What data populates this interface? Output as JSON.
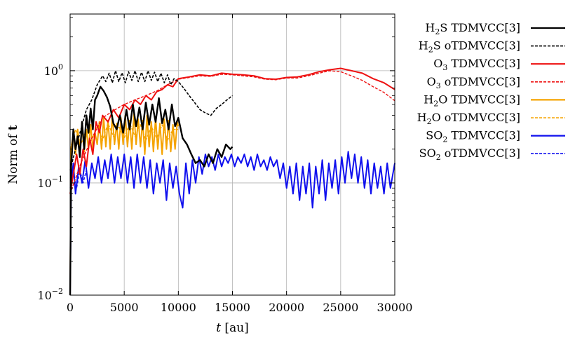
{
  "chart_data": {
    "type": "line",
    "xlabel": {
      "italic": "t",
      "rest": " [au]"
    },
    "ylabel": {
      "text": "Norm of ",
      "bold": "t"
    },
    "xlim": [
      0,
      30000
    ],
    "ylim": [
      0.01,
      3.2
    ],
    "y_scale": "log",
    "grid": true,
    "legend_position": "outside-right",
    "x_ticks": [
      {
        "value": 0,
        "label": "0"
      },
      {
        "value": 5000,
        "label": "5000"
      },
      {
        "value": 10000,
        "label": "10000"
      },
      {
        "value": 15000,
        "label": "15000"
      },
      {
        "value": 20000,
        "label": "20000"
      },
      {
        "value": 25000,
        "label": "25000"
      },
      {
        "value": 30000,
        "label": "30000"
      }
    ],
    "y_ticks": [
      {
        "value": 0.01,
        "base": "10",
        "exp": "−2"
      },
      {
        "value": 0.1,
        "base": "10",
        "exp": "−1"
      },
      {
        "value": 1,
        "base": "10",
        "exp": "0"
      }
    ],
    "series": [
      {
        "name": "H2S TDMVCC[3]",
        "mol": [
          "H",
          "2",
          "S"
        ],
        "method": "TDMVCC[3]",
        "color": "#000000",
        "dash": "",
        "width": 2.4,
        "x": [
          0,
          100,
          300,
          500,
          700,
          900,
          1100,
          1300,
          1500,
          1700,
          1900,
          2100,
          2300,
          2500,
          2800,
          3100,
          3400,
          3700,
          4000,
          4300,
          4600,
          4900,
          5200,
          5500,
          5800,
          6100,
          6400,
          6700,
          7000,
          7300,
          7600,
          7900,
          8200,
          8500,
          8800,
          9100,
          9400,
          9700,
          10000,
          10400,
          10800,
          11200,
          11600,
          12000,
          12400,
          12800,
          13200,
          13600,
          14000,
          14400,
          14800,
          15000
        ],
        "y": [
          0.01,
          0.14,
          0.3,
          0.2,
          0.26,
          0.17,
          0.35,
          0.2,
          0.4,
          0.28,
          0.46,
          0.3,
          0.55,
          0.6,
          0.72,
          0.66,
          0.58,
          0.48,
          0.34,
          0.3,
          0.4,
          0.28,
          0.45,
          0.3,
          0.5,
          0.32,
          0.47,
          0.3,
          0.52,
          0.33,
          0.5,
          0.35,
          0.57,
          0.34,
          0.45,
          0.3,
          0.5,
          0.32,
          0.38,
          0.25,
          0.22,
          0.18,
          0.15,
          0.16,
          0.14,
          0.18,
          0.15,
          0.2,
          0.17,
          0.22,
          0.2,
          0.21
        ]
      },
      {
        "name": "H2S oTDMVCC[3]",
        "mol": [
          "H",
          "2",
          "S"
        ],
        "method": "oTDMVCC[3]",
        "color": "#000000",
        "dash": "4,2",
        "width": 1.6,
        "x": [
          0,
          500,
          1000,
          1500,
          2000,
          2500,
          3000,
          3300,
          3600,
          3900,
          4200,
          4500,
          4800,
          5100,
          5400,
          5700,
          6000,
          6300,
          6600,
          6900,
          7200,
          7500,
          7800,
          8100,
          8400,
          8700,
          9000,
          9300,
          9600,
          10000,
          10500,
          11000,
          11500,
          12000,
          12500,
          13000,
          13500,
          14000,
          14500,
          15000
        ],
        "y": [
          0.13,
          0.2,
          0.3,
          0.45,
          0.55,
          0.75,
          0.9,
          0.8,
          0.95,
          0.78,
          1.0,
          0.8,
          0.96,
          0.78,
          0.98,
          0.82,
          1.0,
          0.8,
          0.97,
          0.8,
          1.0,
          0.82,
          0.97,
          0.8,
          0.95,
          0.78,
          0.92,
          0.75,
          0.85,
          0.8,
          0.7,
          0.6,
          0.52,
          0.45,
          0.42,
          0.4,
          0.46,
          0.5,
          0.55,
          0.6
        ]
      },
      {
        "name": "O3 TDMVCC[3]",
        "mol": [
          "O",
          "3",
          ""
        ],
        "method": "TDMVCC[3]",
        "color": "#ee1111",
        "dash": "",
        "width": 2.0,
        "x": [
          0,
          300,
          600,
          900,
          1200,
          1500,
          1800,
          2100,
          2400,
          2700,
          3000,
          3500,
          4000,
          4500,
          5000,
          5500,
          6000,
          6500,
          7000,
          7500,
          8000,
          8500,
          9000,
          9500,
          10000,
          11000,
          12000,
          13000,
          14000,
          15000,
          16000,
          17000,
          18000,
          19000,
          20000,
          21000,
          22000,
          23000,
          24000,
          25000,
          26000,
          27000,
          28000,
          29000,
          30000
        ],
        "y": [
          0.08,
          0.12,
          0.18,
          0.12,
          0.2,
          0.14,
          0.25,
          0.18,
          0.35,
          0.28,
          0.4,
          0.35,
          0.45,
          0.38,
          0.5,
          0.45,
          0.55,
          0.5,
          0.6,
          0.55,
          0.65,
          0.68,
          0.75,
          0.72,
          0.85,
          0.88,
          0.92,
          0.9,
          0.95,
          0.93,
          0.92,
          0.9,
          0.85,
          0.84,
          0.87,
          0.88,
          0.92,
          0.98,
          1.02,
          1.05,
          1.0,
          0.95,
          0.85,
          0.78,
          0.68
        ]
      },
      {
        "name": "O3 oTDMVCC[3]",
        "mol": [
          "O",
          "3",
          ""
        ],
        "method": "oTDMVCC[3]",
        "color": "#ee1111",
        "dash": "4,2",
        "width": 1.4,
        "x": [
          0,
          1000,
          2000,
          3000,
          4000,
          5000,
          6000,
          7000,
          8000,
          9000,
          10000,
          11000,
          12000,
          13000,
          14000,
          15000,
          16000,
          17000,
          18000,
          19000,
          20000,
          21000,
          22000,
          23000,
          24000,
          25000,
          26000,
          27000,
          28000,
          29000,
          30000
        ],
        "y": [
          0.08,
          0.15,
          0.25,
          0.38,
          0.44,
          0.5,
          0.55,
          0.6,
          0.66,
          0.75,
          0.84,
          0.87,
          0.9,
          0.89,
          0.93,
          0.92,
          0.9,
          0.88,
          0.84,
          0.83,
          0.86,
          0.86,
          0.9,
          0.95,
          1.0,
          0.98,
          0.9,
          0.82,
          0.72,
          0.64,
          0.54
        ]
      },
      {
        "name": "H2O TDMVCC[3]",
        "mol": [
          "H",
          "2",
          "O"
        ],
        "method": "TDMVCC[3]",
        "color": "#f5a300",
        "dash": "",
        "width": 2.0,
        "x": [
          0,
          100,
          300,
          500,
          700,
          900,
          1100,
          1300,
          1500,
          1700,
          1900,
          2100,
          2300,
          2500,
          2700,
          2900,
          3100,
          3300,
          3500,
          3700,
          3900,
          4100,
          4300,
          4500,
          4700,
          4900,
          5100,
          5300,
          5500,
          5700,
          5900,
          6100,
          6300,
          6500,
          6700,
          6900,
          7100,
          7300,
          7500,
          7700,
          7900,
          8100,
          8300,
          8500,
          8700,
          8900,
          9100,
          9300,
          9500,
          9700,
          9900,
          10000
        ],
        "y": [
          0.01,
          0.2,
          0.28,
          0.18,
          0.3,
          0.2,
          0.32,
          0.19,
          0.3,
          0.2,
          0.33,
          0.2,
          0.28,
          0.22,
          0.35,
          0.2,
          0.38,
          0.21,
          0.36,
          0.2,
          0.4,
          0.22,
          0.34,
          0.2,
          0.38,
          0.22,
          0.4,
          0.21,
          0.36,
          0.2,
          0.42,
          0.22,
          0.37,
          0.21,
          0.36,
          0.18,
          0.4,
          0.21,
          0.35,
          0.19,
          0.38,
          0.2,
          0.34,
          0.18,
          0.37,
          0.2,
          0.36,
          0.19,
          0.33,
          0.2,
          0.35,
          0.32
        ]
      },
      {
        "name": "H2O oTDMVCC[3]",
        "mol": [
          "H",
          "2",
          "O"
        ],
        "method": "oTDMVCC[3]",
        "color": "#f5a300",
        "dash": "4,2",
        "width": 1.4,
        "x": [
          0,
          500,
          1000,
          1500,
          2000,
          2500,
          3000,
          3500,
          4000,
          4500,
          5000,
          5500,
          6000,
          6500,
          7000,
          7500,
          8000,
          8500,
          9000,
          9500,
          10000
        ],
        "y": [
          0.2,
          0.3,
          0.22,
          0.3,
          0.24,
          0.32,
          0.24,
          0.34,
          0.26,
          0.32,
          0.25,
          0.34,
          0.26,
          0.33,
          0.24,
          0.32,
          0.25,
          0.33,
          0.24,
          0.3,
          0.3
        ]
      },
      {
        "name": "SO2 TDMVCC[3]",
        "mol": [
          "SO",
          "2",
          ""
        ],
        "method": "TDMVCC[3]",
        "color": "#1010ee",
        "dash": "",
        "width": 2.0,
        "x": [
          0,
          100,
          300,
          500,
          800,
          1100,
          1400,
          1700,
          2000,
          2300,
          2600,
          2900,
          3200,
          3500,
          3800,
          4100,
          4400,
          4700,
          5000,
          5300,
          5600,
          5900,
          6200,
          6500,
          6800,
          7100,
          7400,
          7700,
          8000,
          8300,
          8600,
          8900,
          9200,
          9500,
          9800,
          10100,
          10400,
          10700,
          11000,
          11300,
          11600,
          11900,
          12200,
          12500,
          12800,
          13100,
          13400,
          13700,
          14000,
          14300,
          14600,
          14900,
          15200,
          15500,
          15800,
          16100,
          16400,
          16700,
          17000,
          17300,
          17600,
          17900,
          18200,
          18500,
          18800,
          19100,
          19400,
          19700,
          20000,
          20300,
          20600,
          20900,
          21200,
          21500,
          21800,
          22100,
          22400,
          22700,
          23000,
          23300,
          23600,
          23900,
          24200,
          24500,
          24800,
          25100,
          25400,
          25700,
          26000,
          26300,
          26600,
          26900,
          27200,
          27500,
          27800,
          28100,
          28400,
          28700,
          29000,
          29300,
          29600,
          30000
        ],
        "y": [
          0.01,
          0.1,
          0.15,
          0.08,
          0.14,
          0.1,
          0.16,
          0.09,
          0.15,
          0.11,
          0.17,
          0.1,
          0.16,
          0.11,
          0.18,
          0.1,
          0.17,
          0.11,
          0.18,
          0.1,
          0.17,
          0.09,
          0.18,
          0.1,
          0.17,
          0.09,
          0.16,
          0.08,
          0.15,
          0.1,
          0.16,
          0.07,
          0.15,
          0.09,
          0.14,
          0.08,
          0.06,
          0.15,
          0.08,
          0.16,
          0.1,
          0.17,
          0.12,
          0.18,
          0.14,
          0.17,
          0.13,
          0.18,
          0.14,
          0.17,
          0.15,
          0.18,
          0.14,
          0.17,
          0.15,
          0.18,
          0.14,
          0.17,
          0.13,
          0.18,
          0.14,
          0.16,
          0.13,
          0.17,
          0.14,
          0.16,
          0.11,
          0.15,
          0.09,
          0.14,
          0.08,
          0.15,
          0.07,
          0.14,
          0.08,
          0.15,
          0.06,
          0.14,
          0.08,
          0.16,
          0.07,
          0.15,
          0.09,
          0.16,
          0.08,
          0.17,
          0.1,
          0.19,
          0.11,
          0.18,
          0.1,
          0.17,
          0.09,
          0.16,
          0.08,
          0.15,
          0.09,
          0.14,
          0.08,
          0.15,
          0.09,
          0.15
        ]
      },
      {
        "name": "SO2 oTDMVCC[3]",
        "mol": [
          "SO",
          "2",
          ""
        ],
        "method": "oTDMVCC[3]",
        "color": "#1010ee",
        "dash": "4,2",
        "width": 1.4,
        "x": [
          0,
          300,
          600,
          900,
          1200,
          1500
        ],
        "y": [
          0.09,
          0.12,
          0.09,
          0.13,
          0.1,
          0.13
        ]
      }
    ]
  }
}
